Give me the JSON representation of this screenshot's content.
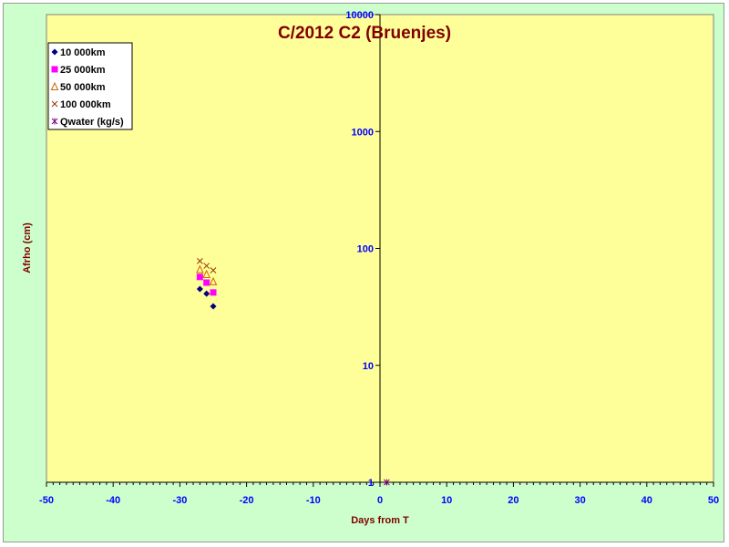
{
  "chart_data": {
    "type": "scatter",
    "title": "C/2012 C2 (Bruenjes)",
    "xlabel": "Days from T",
    "ylabel": "Afrho (cm)",
    "xlim": [
      -50,
      50
    ],
    "ylim": [
      1,
      10000
    ],
    "y_scale": "log",
    "x_ticks": [
      "-50",
      "-40",
      "-30",
      "-20",
      "-10",
      "0",
      "10",
      "20",
      "30",
      "40",
      "50"
    ],
    "y_ticks": [
      "1",
      "10",
      "100",
      "1000",
      "10000"
    ],
    "grid": false,
    "legend_position": "top-left",
    "series": [
      {
        "name": "10 000km",
        "color": "#000080",
        "marker": "diamond",
        "x": [
          -27,
          -26,
          -25
        ],
        "y": [
          45,
          41,
          32
        ]
      },
      {
        "name": "25 000km",
        "color": "#ff00ff",
        "marker": "square",
        "x": [
          -27,
          -26,
          -25
        ],
        "y": [
          57,
          51,
          42
        ]
      },
      {
        "name": "50 000km",
        "color": "#cc6600",
        "marker": "triangle",
        "x": [
          -27,
          -26,
          -25
        ],
        "y": [
          66,
          60,
          52
        ]
      },
      {
        "name": "100 000km",
        "color": "#993300",
        "marker": "x",
        "x": [
          -27,
          -26,
          -25
        ],
        "y": [
          78,
          71,
          65
        ]
      },
      {
        "name": "Qwater (kg/s)",
        "color": "#800080",
        "marker": "star",
        "x": [
          1
        ],
        "y": [
          1
        ]
      }
    ],
    "colors": {
      "plot_background": "#ffff99",
      "chart_background": "#ccffcc",
      "title": "#800000",
      "tick_labels": "#0000ff"
    }
  }
}
